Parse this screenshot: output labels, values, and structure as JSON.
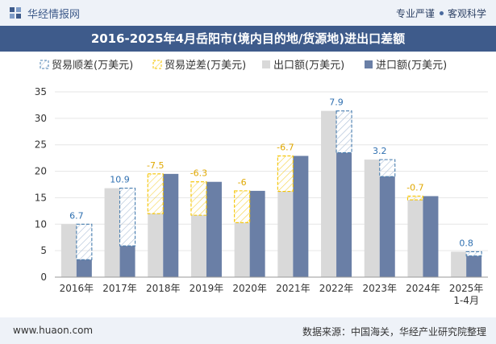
{
  "header": {
    "brand": "华经情报网",
    "tag_left": "专业严谨",
    "tag_right": "客观科学"
  },
  "footer": {
    "url": "www.huaon.com",
    "source": "数据来源：中国海关，华经产业研究院整理"
  },
  "colors": {
    "export": "#d9d9d9",
    "import": "#6a7fa6",
    "surplus_line": "#4a7fb0",
    "deficit_line": "#f5c400",
    "surplus_label": "#2e6fb0",
    "deficit_label": "#e0a800",
    "axis_text": "#333333",
    "grid": "#e6e6e6"
  },
  "chart_data": {
    "type": "bar",
    "title": "2016-2025年4月岳阳市(境内目的地/货源地)进出口差额",
    "categories": [
      "2016年",
      "2017年",
      "2018年",
      "2019年",
      "2020年",
      "2021年",
      "2022年",
      "2023年",
      "2024年",
      "2025年\n1-4月"
    ],
    "ylim": [
      0,
      35
    ],
    "yticks": [
      0,
      5,
      10,
      15,
      20,
      25,
      30,
      35
    ],
    "grid": true,
    "legend_position": "top",
    "series": [
      {
        "name": "出口额(万美元)",
        "values": [
          10.0,
          16.8,
          12.0,
          11.7,
          10.3,
          16.2,
          31.4,
          22.2,
          14.6,
          4.8
        ]
      },
      {
        "name": "进口额(万美元)",
        "values": [
          3.3,
          5.9,
          19.5,
          18.0,
          16.3,
          22.9,
          23.5,
          19.0,
          15.3,
          4.0
        ]
      }
    ],
    "balance": {
      "values": [
        6.7,
        10.9,
        -7.5,
        -6.3,
        -6,
        -6.7,
        7.9,
        3.2,
        -0.7,
        0.8
      ],
      "labels": [
        "6.7",
        "10.9",
        "-7.5",
        "-6.3",
        "-6",
        "-6.7",
        "7.9",
        "3.2",
        "-0.7",
        "0.8"
      ]
    },
    "legend": [
      "贸易顺差(万美元)",
      "贸易逆差(万美元)",
      "出口额(万美元)",
      "进口额(万美元)"
    ]
  }
}
